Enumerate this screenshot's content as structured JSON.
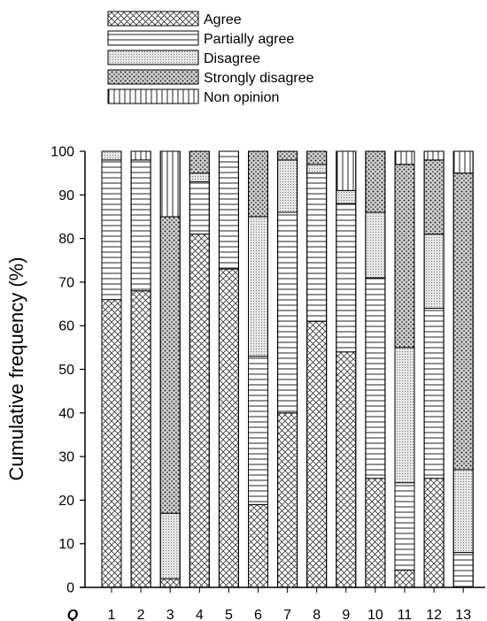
{
  "chart_data": {
    "type": "bar",
    "stacked": true,
    "categories": [
      "1",
      "2",
      "3",
      "4",
      "5",
      "6",
      "7",
      "8",
      "9",
      "10",
      "11",
      "12",
      "13"
    ],
    "category_axis_label": "Q",
    "ylabel": "Cumulative frequency (%)",
    "ylim": [
      0,
      100
    ],
    "yticks": [
      0,
      10,
      20,
      30,
      40,
      50,
      60,
      70,
      80,
      90,
      100
    ],
    "grid": false,
    "legend_position": "top",
    "series": [
      {
        "name": "Agree",
        "pattern": "crosshatch",
        "values": [
          66,
          68,
          2,
          81,
          73,
          19,
          40,
          61,
          54,
          25,
          4,
          25,
          0
        ]
      },
      {
        "name": "Partially agree",
        "pattern": "horizontal-lines",
        "values": [
          32,
          30,
          0,
          12,
          27,
          34,
          46,
          34,
          34,
          46,
          20,
          39,
          8
        ]
      },
      {
        "name": "Disagree",
        "pattern": "fine-dots",
        "values": [
          2,
          0,
          15,
          2,
          0,
          32,
          12,
          2,
          3,
          15,
          31,
          17,
          19
        ]
      },
      {
        "name": "Strongly disagree",
        "pattern": "coarse-dots",
        "values": [
          0,
          0,
          68,
          5,
          0,
          15,
          2,
          3,
          0,
          14,
          42,
          17,
          68
        ]
      },
      {
        "name": "Non opinion",
        "pattern": "vertical-lines",
        "values": [
          0,
          2,
          15,
          0,
          0,
          0,
          0,
          0,
          9,
          0,
          3,
          2,
          5
        ]
      }
    ]
  }
}
